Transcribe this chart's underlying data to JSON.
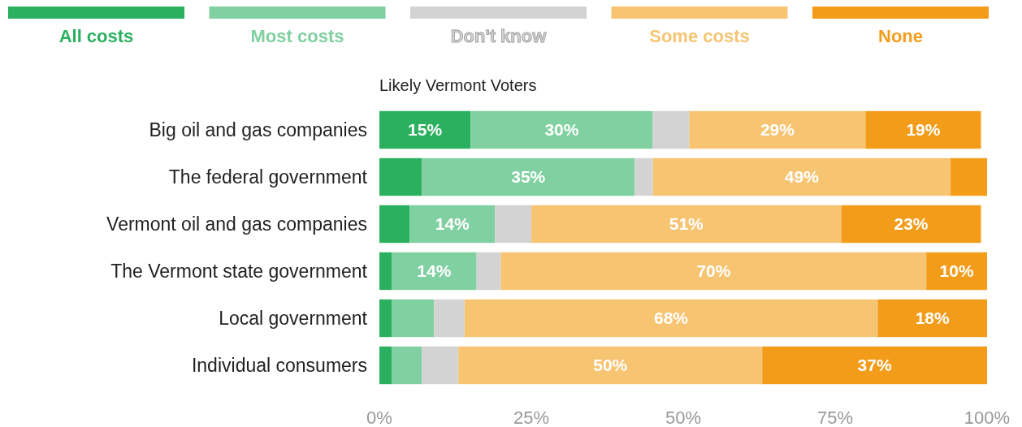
{
  "chart_data": {
    "type": "bar",
    "orientation": "horizontal",
    "stacked": true,
    "title": "Likely Vermont Voters",
    "categories": [
      "Big oil and gas companies",
      "The federal government",
      "Vermont oil and gas companies",
      "The Vermont state government",
      "Local government",
      "Individual consumers"
    ],
    "series": [
      {
        "name": "All costs",
        "color": "#2bb05f",
        "values": [
          15,
          7,
          5,
          2,
          2,
          2
        ],
        "value_labels": [
          "15%",
          null,
          null,
          null,
          null,
          null
        ]
      },
      {
        "name": "Most costs",
        "color": "#80d0a1",
        "values": [
          30,
          35,
          14,
          14,
          7,
          5
        ],
        "value_labels": [
          "30%",
          "35%",
          "14%",
          "14%",
          null,
          null
        ]
      },
      {
        "name": "Don't know",
        "color": "#d3d3d3",
        "values": [
          6,
          3,
          6,
          4,
          5,
          6
        ],
        "value_labels": [
          null,
          null,
          null,
          null,
          null,
          null
        ]
      },
      {
        "name": "Some costs",
        "color": "#f7c472",
        "values": [
          29,
          49,
          51,
          70,
          68,
          50
        ],
        "value_labels": [
          "29%",
          "49%",
          "51%",
          "70%",
          "68%",
          "50%"
        ]
      },
      {
        "name": "None",
        "color": "#f29c1a",
        "values": [
          19,
          6,
          23,
          10,
          18,
          37
        ],
        "value_labels": [
          "19%",
          null,
          "23%",
          "10%",
          "18%",
          "37%"
        ]
      }
    ],
    "xlim": [
      0,
      100
    ],
    "xticks": [
      {
        "value": 0,
        "label": "0%"
      },
      {
        "value": 25,
        "label": "25%"
      },
      {
        "value": 50,
        "label": "50%"
      },
      {
        "value": 75,
        "label": "75%"
      },
      {
        "value": 100,
        "label": "100%"
      }
    ],
    "legend": "top",
    "grid": false
  }
}
